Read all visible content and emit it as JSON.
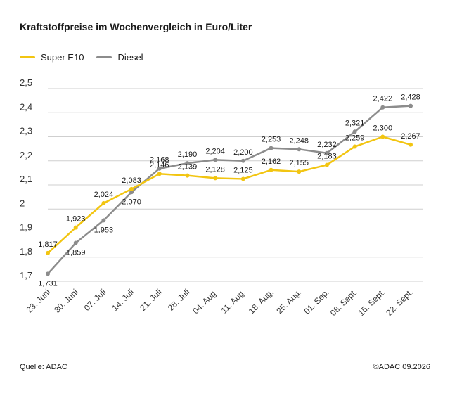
{
  "title": "Kraftstoffpreise im Wochenvergleich in Euro/Liter",
  "legend": {
    "super": {
      "label": "Super E10",
      "color": "#f2c511"
    },
    "diesel": {
      "label": "Diesel",
      "color": "#8c8c8c"
    }
  },
  "footer": {
    "source": "Quelle: ADAC",
    "copyright": "©ADAC 09.2026"
  },
  "chart_data": {
    "type": "line",
    "title": "Kraftstoffpreise im Wochenvergleich in Euro/Liter",
    "categories": [
      "23. Juni",
      "30. Juni",
      "07. Juli",
      "14. Juli",
      "21. Juli",
      "28. Juli",
      "04. Aug.",
      "11. Aug.",
      "18. Aug.",
      "25. Aug.",
      "01. Sep.",
      "08. Sept.",
      "15. Sept.",
      "22. Sept."
    ],
    "series": [
      {
        "name": "Super E10",
        "color": "#f2c511",
        "values": [
          1.817,
          1.923,
          2.024,
          2.083,
          2.146,
          2.139,
          2.128,
          2.125,
          2.162,
          2.155,
          2.183,
          2.259,
          2.3,
          2.267
        ],
        "labels": [
          "1,817",
          "1,923",
          "2,024",
          "2,083",
          "2,146",
          "2,139",
          "2,128",
          "2,125",
          "2,162",
          "2,155",
          "2,183",
          "2,259",
          "2,300",
          "2,267"
        ]
      },
      {
        "name": "Diesel",
        "color": "#8c8c8c",
        "values": [
          1.731,
          1.859,
          1.953,
          2.07,
          2.168,
          2.19,
          2.204,
          2.2,
          2.253,
          2.248,
          2.232,
          2.321,
          2.422,
          2.428
        ],
        "labels": [
          "1,731",
          "1,859",
          "1,953",
          "2,070",
          "2,168",
          "2,190",
          "2,204",
          "2,200",
          "2,253",
          "2,248",
          "2,232",
          "2,321",
          "2,422",
          "2,428"
        ]
      }
    ],
    "yticks": [
      1.7,
      1.8,
      1.9,
      2.0,
      2.1,
      2.2,
      2.3,
      2.4,
      2.5
    ],
    "ytick_labels": [
      "1,7",
      "1,8",
      "1,9",
      "2",
      "2,1",
      "2,2",
      "2,3",
      "2,4",
      "2,5"
    ],
    "ylim": [
      1.7,
      2.5
    ],
    "grid": "horizontal",
    "legend_position": "top-left"
  }
}
